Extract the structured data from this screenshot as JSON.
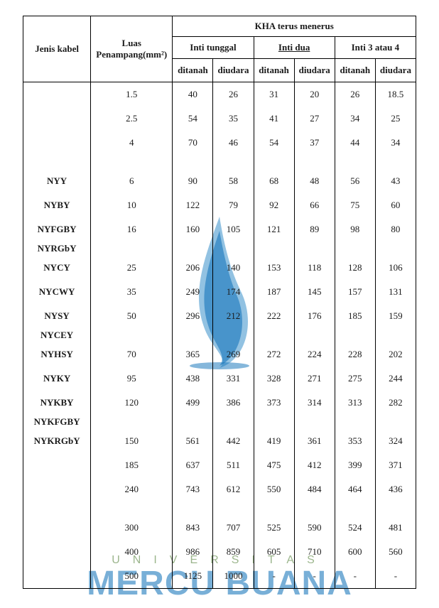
{
  "colors": {
    "text": "#1b1b1b",
    "border": "#000000",
    "background": "#ffffff",
    "watermark_blue": "#0b6fb8",
    "watermark_blue_light": "#388fcb",
    "watermark_letters": "#0b6fb8",
    "watermark_uni": "#4b7a2f"
  },
  "watermark": {
    "universitas": "UNIVERSITAS",
    "mercu": "MERCU BUANA"
  },
  "head": {
    "jenis": "Jenis kabel",
    "luas": "Luas Penampang(mm²)",
    "kha_top": "KHA terus menerus",
    "inti_tunggal": "Inti tunggal",
    "inti_dua": "Inti  dua",
    "inti_34": "Inti 3 atau 4",
    "ditanah": "ditanah",
    "diudara": "diudara"
  },
  "cable_labels": [
    "",
    "",
    "",
    "",
    "NYY",
    "NYBY",
    "NYFGBY",
    "NYRGbY",
    "NYCY",
    "NYCWY",
    "NYSY",
    "NYCEY",
    "NYHSY",
    "NYKY",
    "NYKBY",
    "NYKFGBY",
    "NYKRGbY",
    "",
    "",
    "",
    "",
    "",
    ""
  ],
  "rows": [
    {
      "luas": "1.5",
      "v": [
        "40",
        "26",
        "31",
        "20",
        "26",
        "18.5"
      ]
    },
    {
      "luas": "2.5",
      "v": [
        "54",
        "35",
        "41",
        "27",
        "34",
        "25"
      ]
    },
    {
      "luas": "4",
      "v": [
        "70",
        "46",
        "54",
        "37",
        "44",
        "34"
      ]
    },
    {
      "luas": "",
      "v": [
        "",
        "",
        "",
        "",
        "",
        ""
      ]
    },
    {
      "luas": "6",
      "v": [
        "90",
        "58",
        "68",
        "48",
        "56",
        "43"
      ]
    },
    {
      "luas": "10",
      "v": [
        "122",
        "79",
        "92",
        "66",
        "75",
        "60"
      ]
    },
    {
      "luas": "16",
      "v": [
        "160",
        "105",
        "121",
        "89",
        "98",
        "80"
      ]
    },
    {
      "luas": "",
      "v": [
        "",
        "",
        "",
        "",
        "",
        ""
      ]
    },
    {
      "luas": "25",
      "v": [
        "206",
        "140",
        "153",
        "118",
        "128",
        "106"
      ]
    },
    {
      "luas": "35",
      "v": [
        "249",
        "174",
        "187",
        "145",
        "157",
        "131"
      ]
    },
    {
      "luas": "50",
      "v": [
        "296",
        "212",
        "222",
        "176",
        "185",
        "159"
      ]
    },
    {
      "luas": "",
      "v": [
        "",
        "",
        "",
        "",
        "",
        ""
      ]
    },
    {
      "luas": "70",
      "v": [
        "365",
        "269",
        "272",
        "224",
        "228",
        "202"
      ]
    },
    {
      "luas": "95",
      "v": [
        "438",
        "331",
        "328",
        "271",
        "275",
        "244"
      ]
    },
    {
      "luas": "120",
      "v": [
        "499",
        "386",
        "373",
        "314",
        "313",
        "282"
      ]
    },
    {
      "luas": "",
      "v": [
        "",
        "",
        "",
        "",
        "",
        ""
      ]
    },
    {
      "luas": "150",
      "v": [
        "561",
        "442",
        "419",
        "361",
        "353",
        "324"
      ]
    },
    {
      "luas": "185",
      "v": [
        "637",
        "511",
        "475",
        "412",
        "399",
        "371"
      ]
    },
    {
      "luas": "240",
      "v": [
        "743",
        "612",
        "550",
        "484",
        "464",
        "436"
      ]
    },
    {
      "luas": "",
      "v": [
        "",
        "",
        "",
        "",
        "",
        ""
      ]
    },
    {
      "luas": "300",
      "v": [
        "843",
        "707",
        "525",
        "590",
        "524",
        "481"
      ]
    },
    {
      "luas": "400",
      "v": [
        "986",
        "859",
        "605",
        "710",
        "600",
        "560"
      ]
    },
    {
      "luas": "500",
      "v": [
        "1125",
        "1000",
        "-",
        "-",
        "-",
        "-"
      ]
    }
  ]
}
